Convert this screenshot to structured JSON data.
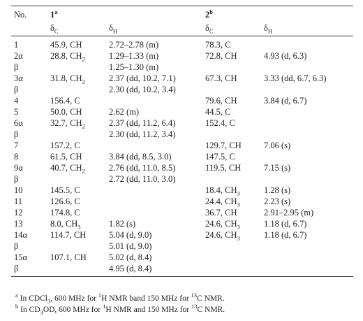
{
  "table": {
    "header": {
      "no": "No.",
      "compounds": [
        [
          "1",
          {
            "sup": "a"
          }
        ],
        [
          "2",
          {
            "sup": "b"
          }
        ]
      ],
      "sub": [
        [
          "δ",
          {
            "sub": "C"
          }
        ],
        [
          "δ",
          {
            "sub": "H"
          }
        ],
        [
          "δ",
          {
            "sub": "C"
          }
        ],
        [
          "δ",
          {
            "sub": "H"
          }
        ]
      ]
    },
    "rows": [
      [
        "1",
        "45.9, CH",
        "2.72–2.78 (m)",
        "78.3, C",
        null
      ],
      [
        "2α",
        [
          "28.8, CH",
          {
            "sub": "2"
          }
        ],
        "1.29–1.33 (m)",
        "72.8, CH",
        "4.93 (d, 6.3)"
      ],
      [
        "β",
        null,
        "1.25–1.30 (m)",
        null,
        null
      ],
      [
        "3α",
        [
          "31.8, CH",
          {
            "sub": "2"
          }
        ],
        "2.37 (dd, 10.2, 7.1)",
        "67.3, CH",
        "3.33 (dd, 6.7, 6.3)"
      ],
      [
        "β",
        null,
        "2.30 (dd, 10.2, 3.4)",
        null,
        null
      ],
      [
        "4",
        "156.4, C",
        null,
        "79.6, CH",
        "3.84 (d, 6.7)"
      ],
      [
        "5",
        "50.0, CH",
        "2.62 (m)",
        "44.5, C",
        null
      ],
      [
        "6α",
        [
          "32.7, CH",
          {
            "sub": "2"
          }
        ],
        "2.37 (dd, 11.2, 6.4)",
        "152.4, C",
        null
      ],
      [
        "β",
        null,
        "2.30 (dd, 11.2, 3.4)",
        null,
        null
      ],
      [
        "7",
        "157.2, C",
        null,
        "129.7, CH",
        "7.06 (s)"
      ],
      [
        "8",
        "61.5, CH",
        "3.84 (dd, 8.5, 3.0)",
        "147.5, C",
        null
      ],
      [
        "9α",
        [
          "40.7, CH",
          {
            "sub": "2"
          }
        ],
        "2.76 (dd, 11.0, 8.5)",
        "119.5, CH",
        "7.15 (s)"
      ],
      [
        "β",
        null,
        "2.72 (dd, 11.0, 3.0)",
        null,
        null
      ],
      [
        "10",
        "145.5, C",
        null,
        [
          "18.4, CH",
          {
            "sub": "3"
          }
        ],
        "1.28 (s)"
      ],
      [
        "11",
        "126.6, C",
        null,
        [
          "24.4, CH",
          {
            "sub": "3"
          }
        ],
        "2.23 (s)"
      ],
      [
        "12",
        "174.8, C",
        null,
        "36.7, CH",
        "2.91–2.95 (m)"
      ],
      [
        "13",
        [
          "8.0, CH",
          {
            "sub": "3"
          }
        ],
        "1.82 (s)",
        [
          "24.6, CH",
          {
            "sub": "3"
          }
        ],
        "1.18 (d, 6.7)"
      ],
      [
        "14α",
        "114.7, CH",
        "5.04 (d, 9.0)",
        [
          "24.6, CH",
          {
            "sub": "3"
          }
        ],
        "1.18 (d, 6.7)"
      ],
      [
        "β",
        null,
        "5.01 (d, 9.0)",
        null,
        null
      ],
      [
        "15α",
        "107.1, CH",
        "5.02 (d, 8.4)",
        null,
        null
      ],
      [
        "β",
        null,
        "4.95 (d, 8.4)",
        null,
        null
      ]
    ],
    "footnotes": [
      [
        {
          "sup": "a"
        },
        " In CDCl",
        {
          "sub": "3"
        },
        ", 600 MHz for ",
        {
          "sup": "1"
        },
        "H NMR band 150 MHz for ",
        {
          "sup": "13"
        },
        "C NMR."
      ],
      [
        {
          "sup": "b"
        },
        " In CD",
        {
          "sub": "3"
        },
        "OD, 600 MHz for ",
        {
          "sup": "1"
        },
        "H NMR and 150 MHz for ",
        {
          "sup": "13"
        },
        "C NMR."
      ]
    ]
  }
}
